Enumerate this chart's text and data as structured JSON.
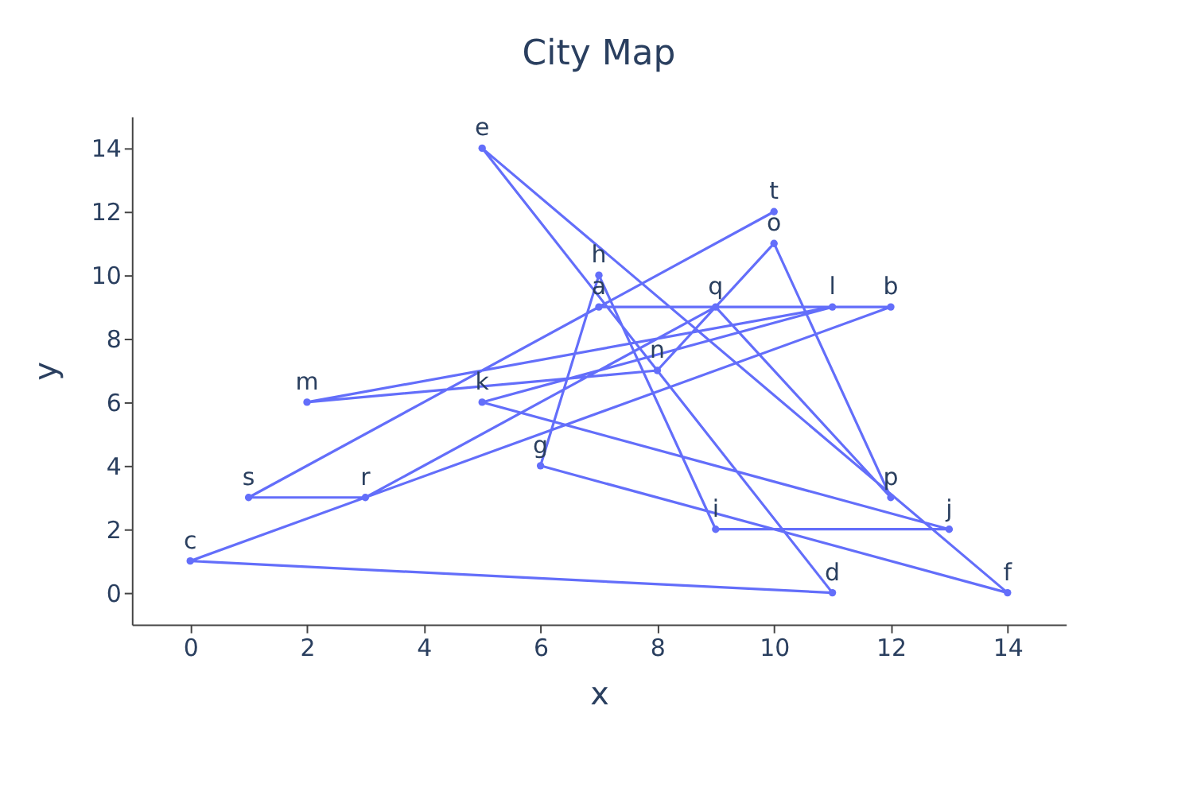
{
  "chart_data": {
    "type": "line",
    "title": "City Map",
    "xlabel": "x",
    "ylabel": "y",
    "x": [
      7,
      12,
      0,
      11,
      5,
      14,
      6,
      7,
      9,
      13,
      5,
      11,
      2,
      8,
      10,
      12,
      9,
      3,
      1,
      10
    ],
    "series": [
      {
        "color": "#636efa",
        "values": [
          9,
          9,
          1,
          0,
          14,
          0,
          4,
          10,
          2,
          2,
          6,
          9,
          6,
          7,
          11,
          3,
          9,
          3,
          3,
          12
        ]
      }
    ],
    "annotations": [
      {
        "text": "a",
        "x": 7,
        "y": 9
      },
      {
        "text": "b",
        "x": 12,
        "y": 9
      },
      {
        "text": "c",
        "x": 0,
        "y": 1
      },
      {
        "text": "d",
        "x": 11,
        "y": 0
      },
      {
        "text": "e",
        "x": 5,
        "y": 14
      },
      {
        "text": "f",
        "x": 14,
        "y": 0
      },
      {
        "text": "g",
        "x": 6,
        "y": 4
      },
      {
        "text": "h",
        "x": 7,
        "y": 10
      },
      {
        "text": "i",
        "x": 9,
        "y": 2
      },
      {
        "text": "j",
        "x": 13,
        "y": 2
      },
      {
        "text": "k",
        "x": 5,
        "y": 6
      },
      {
        "text": "l",
        "x": 11,
        "y": 9
      },
      {
        "text": "m",
        "x": 2,
        "y": 6
      },
      {
        "text": "n",
        "x": 8,
        "y": 7
      },
      {
        "text": "o",
        "x": 10,
        "y": 11
      },
      {
        "text": "p",
        "x": 12,
        "y": 3
      },
      {
        "text": "q",
        "x": 9,
        "y": 9
      },
      {
        "text": "r",
        "x": 3,
        "y": 3
      },
      {
        "text": "s",
        "x": 1,
        "y": 3
      },
      {
        "text": "t",
        "x": 10,
        "y": 12
      }
    ],
    "xlim": [
      -1,
      15
    ],
    "ylim": [
      -1,
      15
    ],
    "xticks": [
      0,
      2,
      4,
      6,
      8,
      10,
      12,
      14
    ],
    "yticks": [
      0,
      2,
      4,
      6,
      8,
      10,
      12,
      14
    ],
    "grid": false,
    "marker": "circle",
    "line_style": "solid"
  }
}
